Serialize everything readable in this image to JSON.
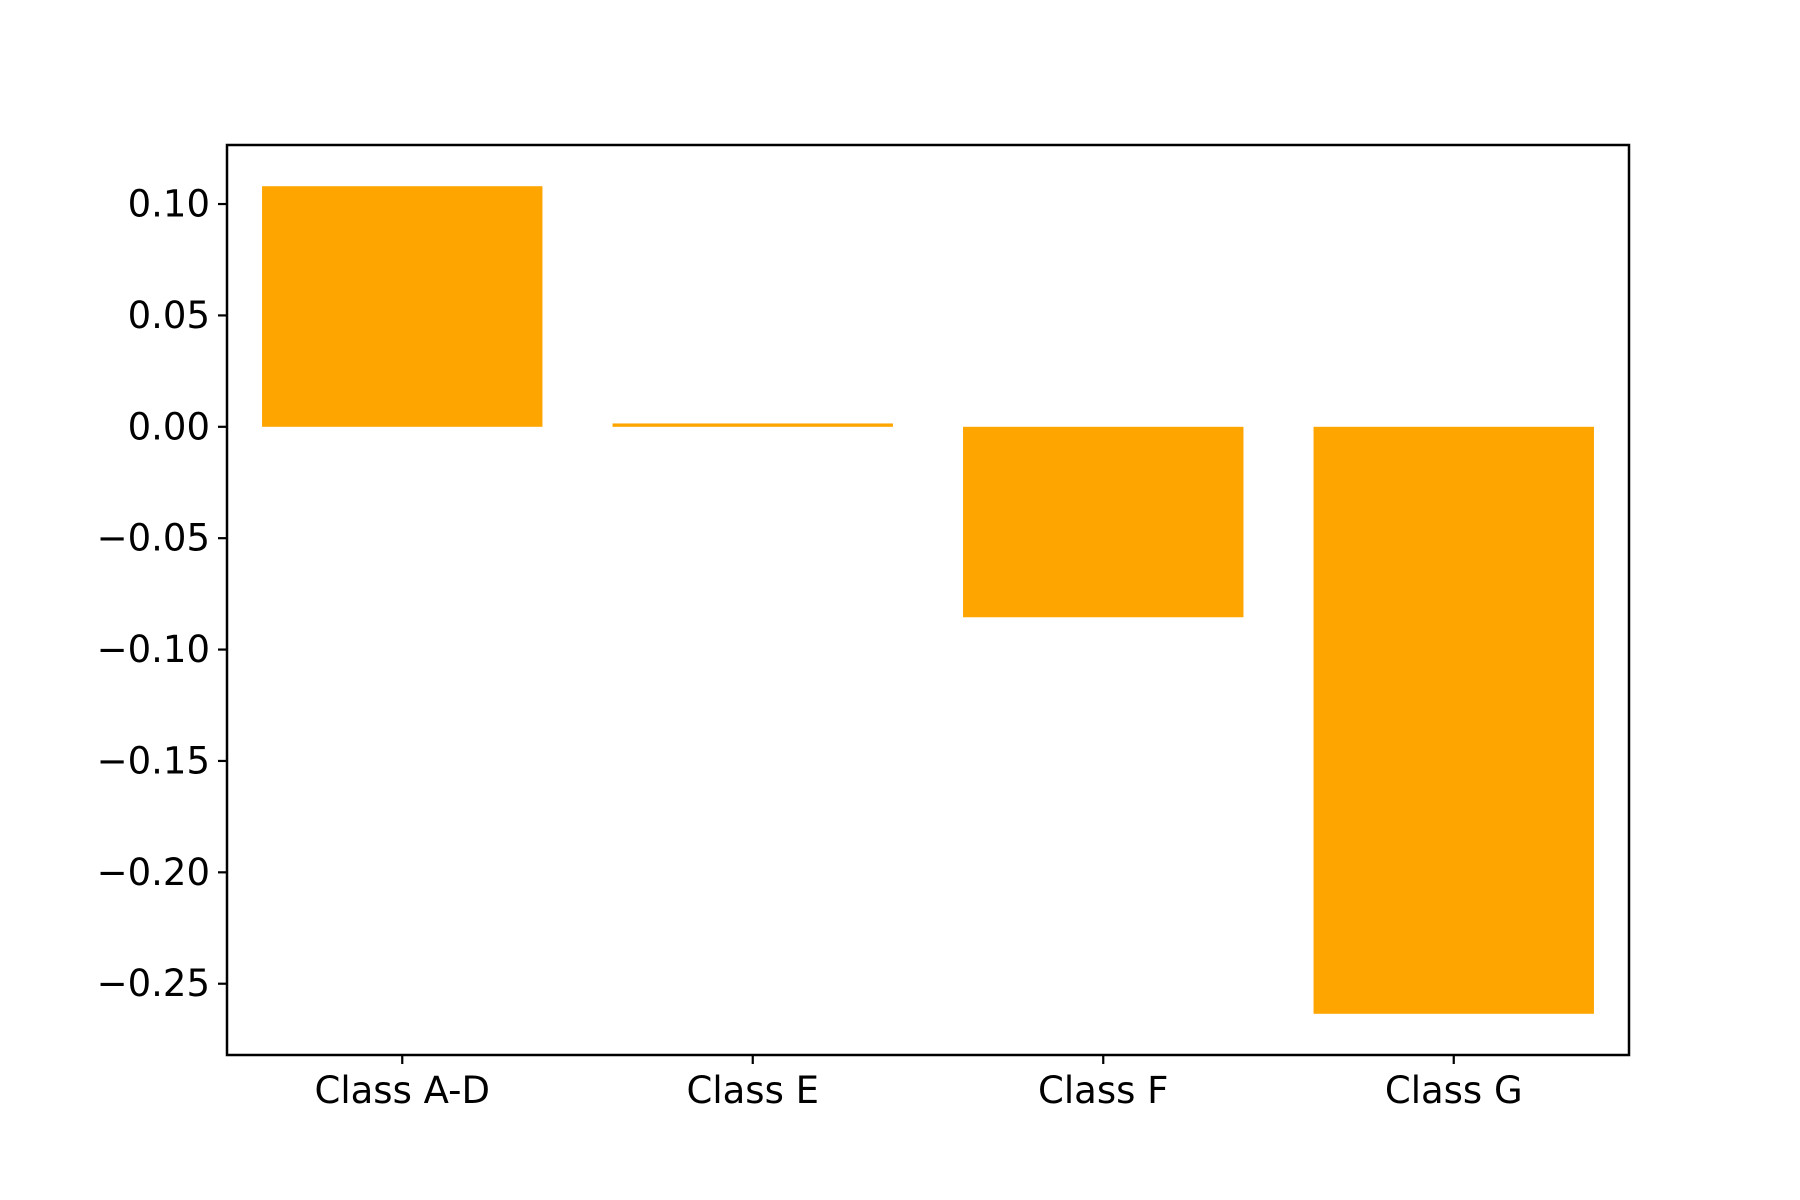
{
  "chart_data": {
    "type": "bar",
    "categories": [
      "Class A-D",
      "Class E",
      "Class F",
      "Class G"
    ],
    "values": [
      0.108,
      0.0015,
      -0.0855,
      -0.2635
    ],
    "title": "",
    "xlabel": "",
    "ylabel": "",
    "ylim": [
      -0.282,
      0.1265
    ],
    "yticks": [
      0.1,
      0.05,
      0.0,
      -0.05,
      -0.1,
      -0.15,
      -0.2,
      -0.25
    ],
    "ytick_labels": [
      "0.10",
      "0.05",
      "0.00",
      "−0.05",
      "−0.10",
      "−0.15",
      "−0.20",
      "−0.25"
    ],
    "grid": false,
    "legend": "none",
    "bar_color": "#ffa500"
  }
}
